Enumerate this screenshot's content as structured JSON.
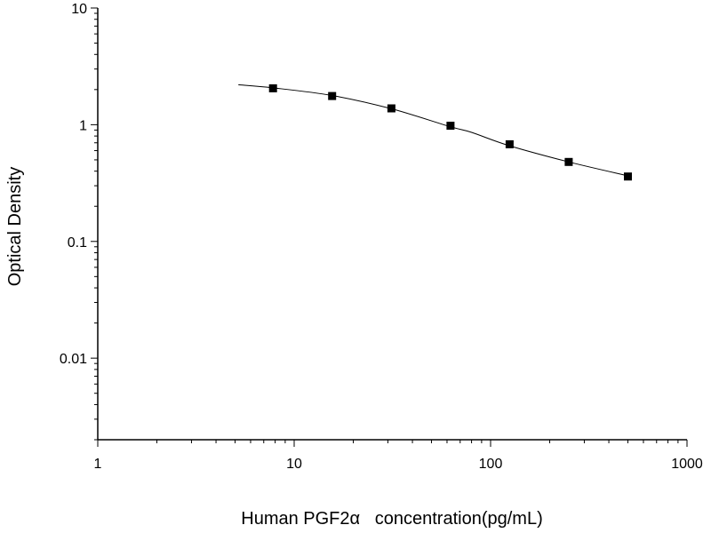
{
  "chart_data": {
    "type": "scatter",
    "title": "",
    "xlabel": "Human PGF2α   concentration(pg/mL)",
    "ylabel": "Optical Density",
    "x_scale": "log",
    "y_scale": "log",
    "xlim": [
      1,
      1000
    ],
    "ylim": [
      0.002,
      10
    ],
    "x_ticks": [
      {
        "value": 1,
        "label": "1"
      },
      {
        "value": 10,
        "label": "10"
      },
      {
        "value": 100,
        "label": "100"
      },
      {
        "value": 1000,
        "label": "1000"
      }
    ],
    "y_ticks": [
      {
        "value": 10,
        "label": "10"
      },
      {
        "value": 1,
        "label": "1"
      },
      {
        "value": 0.1,
        "label": "0.1"
      },
      {
        "value": 0.01,
        "label": "0.01"
      }
    ],
    "grid": false,
    "legend": "none",
    "series": [
      {
        "marker": "square",
        "color": "#000000",
        "x": [
          7.8,
          15.6,
          31.25,
          62.5,
          125,
          250,
          500
        ],
        "y": [
          2.05,
          1.76,
          1.38,
          0.98,
          0.68,
          0.48,
          0.36
        ]
      }
    ],
    "fit_curve": {
      "color": "#000000",
      "x": [
        5.2,
        7.8,
        15.6,
        31.25,
        62.5,
        80,
        125,
        250,
        500
      ],
      "y": [
        2.2,
        2.07,
        1.78,
        1.37,
        0.96,
        0.86,
        0.66,
        0.48,
        0.365
      ]
    }
  }
}
